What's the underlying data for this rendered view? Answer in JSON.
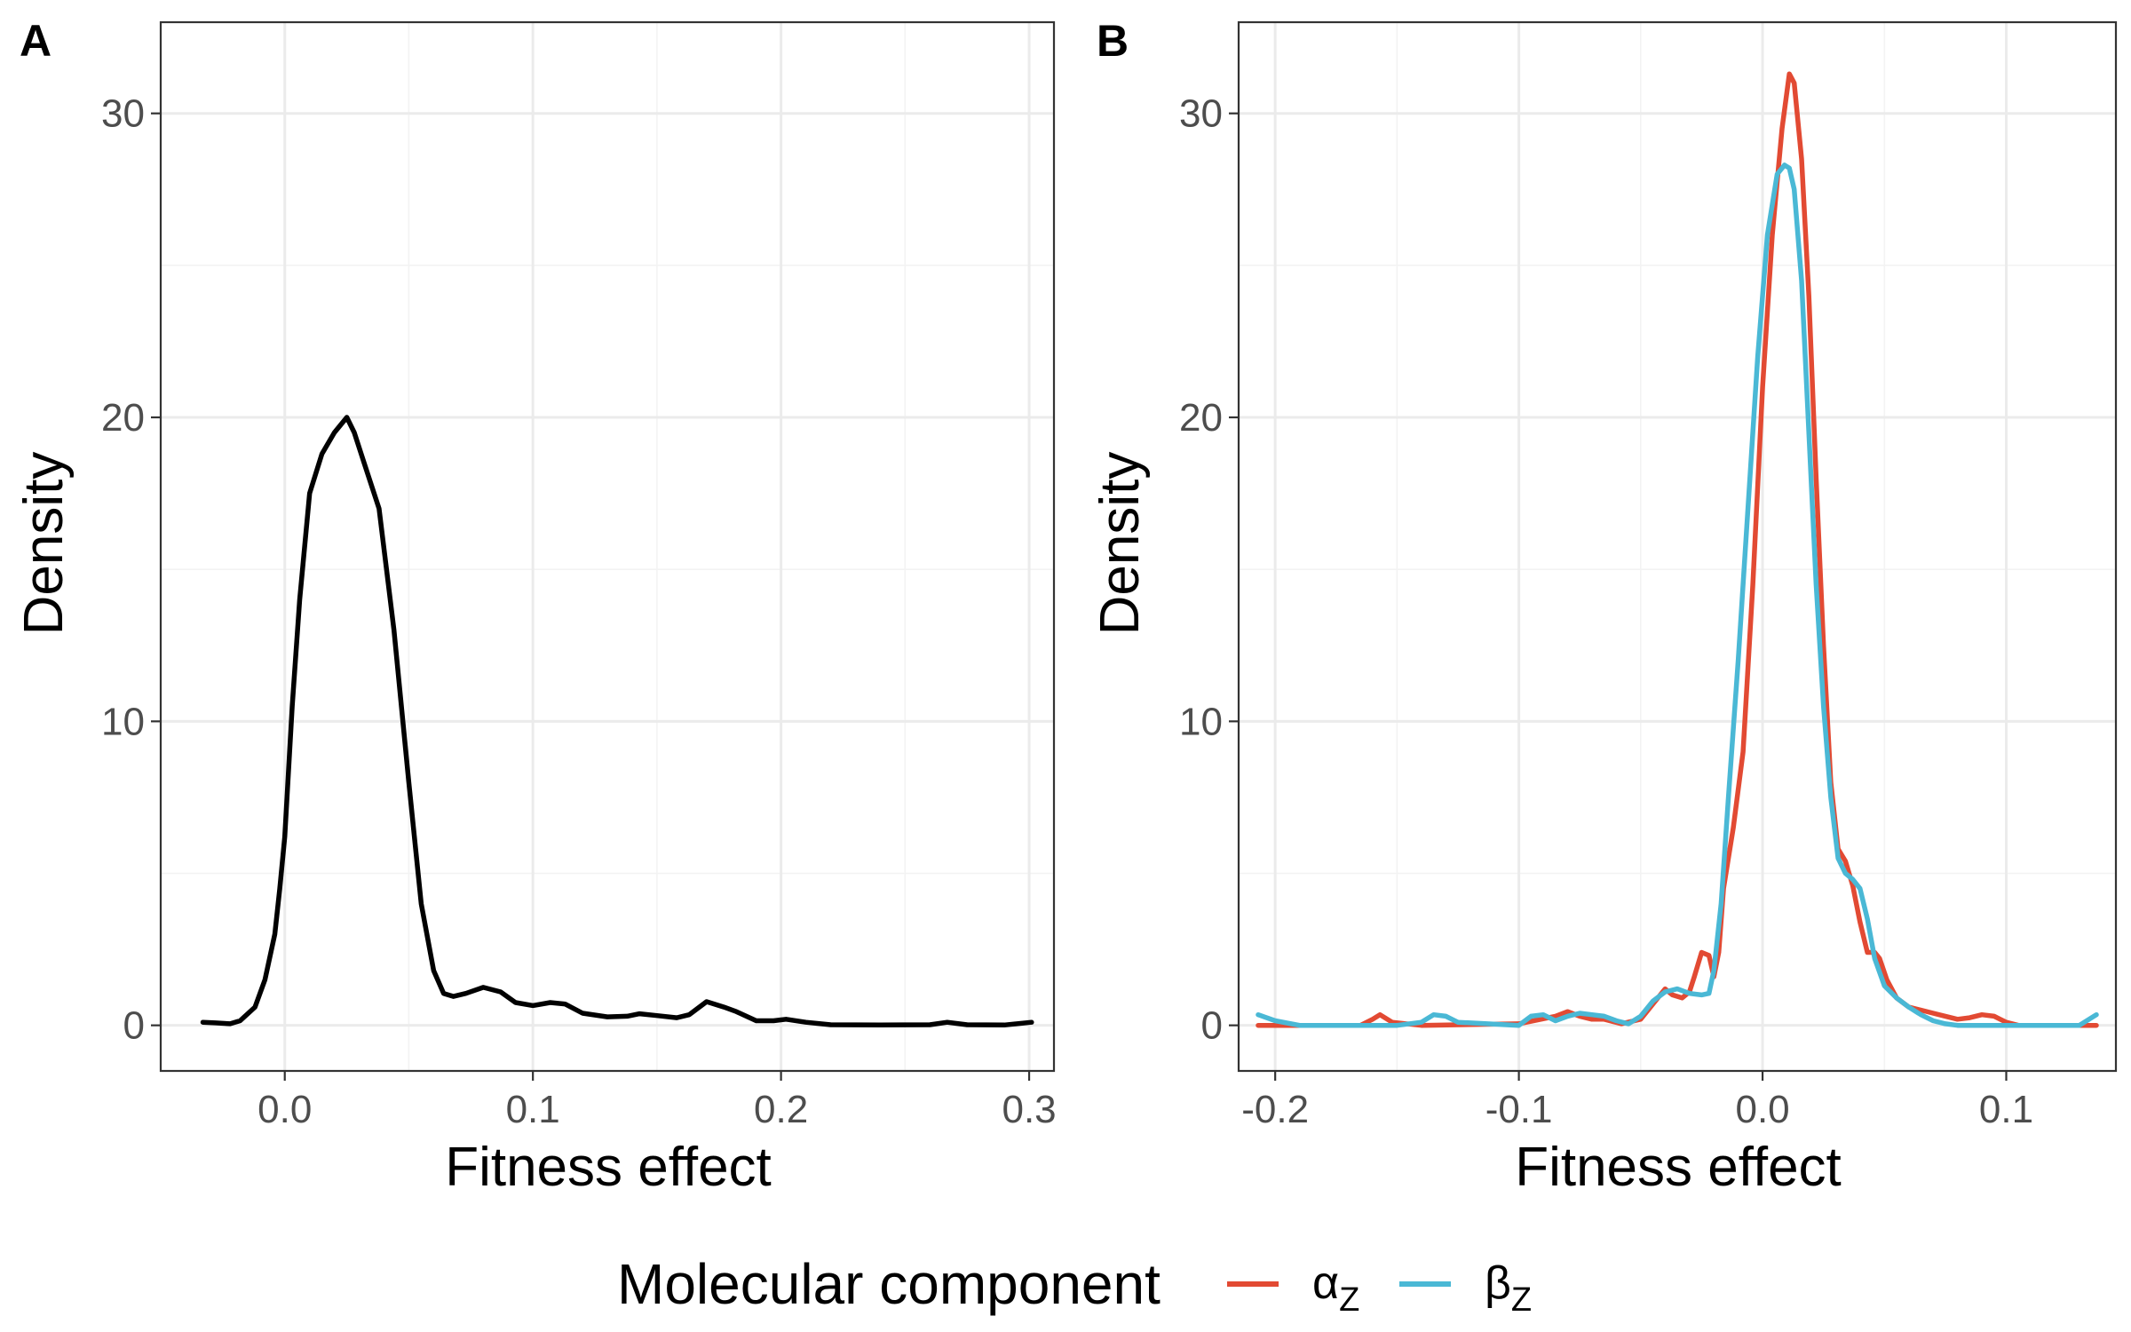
{
  "chart_data": [
    {
      "type": "line",
      "panel": "A",
      "xlabel": "Fitness effect",
      "ylabel": "Density",
      "xlim": [
        -0.05,
        0.31
      ],
      "ylim": [
        -1.5,
        33
      ],
      "x_ticks": [
        0.0,
        0.1,
        0.2,
        0.3
      ],
      "x_tick_labels": [
        "0.0",
        "0.1",
        "0.2",
        "0.3"
      ],
      "y_ticks": [
        0,
        10,
        20,
        30
      ],
      "y_tick_labels": [
        "0",
        "10",
        "20",
        "30"
      ],
      "grid": true,
      "series": [
        {
          "color": "#000000",
          "x": [
            -0.033,
            -0.028,
            -0.022,
            -0.018,
            -0.012,
            -0.008,
            -0.004,
            -0.002,
            0.0,
            0.003,
            0.006,
            0.01,
            0.015,
            0.02,
            0.025,
            0.028,
            0.032,
            0.038,
            0.044,
            0.05,
            0.055,
            0.06,
            0.064,
            0.068,
            0.073,
            0.08,
            0.087,
            0.093,
            0.1,
            0.107,
            0.113,
            0.12,
            0.13,
            0.138,
            0.143,
            0.15,
            0.158,
            0.163,
            0.17,
            0.177,
            0.182,
            0.19,
            0.197,
            0.202,
            0.21,
            0.22,
            0.24,
            0.26,
            0.267,
            0.275,
            0.29,
            0.301
          ],
          "y": [
            0.1,
            0.08,
            0.05,
            0.15,
            0.6,
            1.5,
            3.0,
            4.5,
            6.2,
            10.5,
            14.0,
            17.5,
            18.8,
            19.5,
            20.0,
            19.5,
            18.5,
            17.0,
            13.0,
            8.0,
            4.0,
            1.8,
            1.05,
            0.95,
            1.05,
            1.25,
            1.1,
            0.75,
            0.65,
            0.75,
            0.7,
            0.4,
            0.28,
            0.3,
            0.38,
            0.32,
            0.25,
            0.35,
            0.78,
            0.6,
            0.45,
            0.15,
            0.15,
            0.2,
            0.1,
            0.02,
            0.01,
            0.02,
            0.1,
            0.02,
            0.01,
            0.1
          ]
        }
      ]
    },
    {
      "type": "line",
      "panel": "B",
      "xlabel": "Fitness effect",
      "ylabel": "Density",
      "xlim": [
        -0.215,
        0.145
      ],
      "ylim": [
        -1.5,
        33
      ],
      "x_ticks": [
        -0.2,
        -0.1,
        0.0,
        0.1
      ],
      "x_tick_labels": [
        "-0.2",
        "-0.1",
        "0.0",
        "0.1"
      ],
      "y_ticks": [
        0,
        10,
        20,
        30
      ],
      "y_tick_labels": [
        "0",
        "10",
        "20",
        "30"
      ],
      "grid": true,
      "legend": {
        "position": "bottom",
        "title": "Molecular component"
      },
      "series": [
        {
          "name": "αZ",
          "color": "#E24A33",
          "x": [
            -0.207,
            -0.165,
            -0.16,
            -0.157,
            -0.152,
            -0.14,
            -0.1,
            -0.085,
            -0.08,
            -0.075,
            -0.07,
            -0.065,
            -0.058,
            -0.05,
            -0.045,
            -0.04,
            -0.037,
            -0.033,
            -0.03,
            -0.028,
            -0.025,
            -0.022,
            -0.02,
            -0.018,
            -0.016,
            -0.012,
            -0.008,
            -0.004,
            0.0,
            0.004,
            0.008,
            0.011,
            0.013,
            0.016,
            0.019,
            0.022,
            0.025,
            0.028,
            0.031,
            0.034,
            0.037,
            0.04,
            0.043,
            0.046,
            0.048,
            0.051,
            0.055,
            0.06,
            0.065,
            0.07,
            0.075,
            0.08,
            0.085,
            0.09,
            0.095,
            0.1,
            0.105,
            0.11,
            0.137
          ],
          "y": [
            0.0,
            0.0,
            0.2,
            0.35,
            0.1,
            0.0,
            0.05,
            0.3,
            0.45,
            0.3,
            0.2,
            0.2,
            0.05,
            0.2,
            0.7,
            1.2,
            1.0,
            0.9,
            1.1,
            1.6,
            2.4,
            2.3,
            1.6,
            2.4,
            4.5,
            6.5,
            9.0,
            14.5,
            21.0,
            26.0,
            29.5,
            31.3,
            31.0,
            28.5,
            24.0,
            18.0,
            12.5,
            8.0,
            5.8,
            5.4,
            4.6,
            3.4,
            2.4,
            2.4,
            2.2,
            1.5,
            0.9,
            0.6,
            0.5,
            0.4,
            0.3,
            0.2,
            0.25,
            0.35,
            0.3,
            0.1,
            0.0,
            0.0,
            0.0
          ]
        },
        {
          "name": "βZ",
          "color": "#4AB8D5",
          "x": [
            -0.207,
            -0.2,
            -0.19,
            -0.18,
            -0.15,
            -0.14,
            -0.135,
            -0.13,
            -0.125,
            -0.1,
            -0.095,
            -0.09,
            -0.085,
            -0.08,
            -0.075,
            -0.07,
            -0.065,
            -0.06,
            -0.055,
            -0.05,
            -0.045,
            -0.04,
            -0.035,
            -0.03,
            -0.025,
            -0.022,
            -0.02,
            -0.017,
            -0.014,
            -0.01,
            -0.006,
            -0.002,
            0.002,
            0.006,
            0.009,
            0.011,
            0.013,
            0.016,
            0.019,
            0.022,
            0.025,
            0.028,
            0.031,
            0.034,
            0.037,
            0.04,
            0.043,
            0.046,
            0.05,
            0.055,
            0.06,
            0.065,
            0.07,
            0.075,
            0.08,
            0.09,
            0.1,
            0.13,
            0.137
          ],
          "y": [
            0.35,
            0.15,
            0.0,
            0.0,
            0.0,
            0.1,
            0.35,
            0.3,
            0.1,
            0.0,
            0.3,
            0.35,
            0.15,
            0.3,
            0.4,
            0.35,
            0.3,
            0.15,
            0.05,
            0.3,
            0.8,
            1.1,
            1.2,
            1.05,
            1.0,
            1.05,
            1.8,
            4.0,
            7.5,
            12.0,
            17.0,
            22.0,
            26.0,
            28.0,
            28.3,
            28.2,
            27.5,
            24.5,
            19.5,
            14.5,
            10.5,
            7.5,
            5.5,
            5.0,
            4.8,
            4.5,
            3.5,
            2.2,
            1.3,
            0.9,
            0.6,
            0.35,
            0.15,
            0.05,
            0.0,
            0.0,
            0.0,
            0.0,
            0.35
          ]
        }
      ]
    }
  ],
  "panels": {
    "a": {
      "letter": "A",
      "xlabel": "Fitness effect",
      "ylabel": "Density"
    },
    "b": {
      "letter": "B",
      "xlabel": "Fitness effect",
      "ylabel": "Density"
    }
  },
  "legend": {
    "title": "Molecular component",
    "items": [
      {
        "main": "α",
        "sub": "Z",
        "color": "#E24A33"
      },
      {
        "main": "β",
        "sub": "Z",
        "color": "#4AB8D5"
      }
    ]
  }
}
